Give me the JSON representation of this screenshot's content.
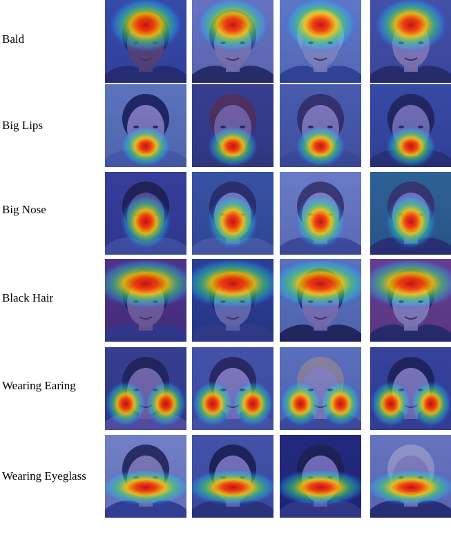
{
  "figure": {
    "rows": [
      {
        "label": "Bald",
        "focus": "crown",
        "tiles": [
          {
            "bg": "#3a4fa8",
            "skin": "#6b4a6e",
            "hair": "#1e1e40",
            "cloth": "#2a2f6a"
          },
          {
            "bg": "#7b86c9",
            "skin": "#9b8fc0",
            "hair": "#3a3a6a",
            "cloth": "#2c2f5e"
          },
          {
            "bg": "#6f8bd1",
            "skin": "#9ea8d6",
            "hair": "#b7bbe0",
            "cloth": "#3b4fa2"
          },
          {
            "bg": "#4a57a8",
            "skin": "#a492c6",
            "hair": "#5a5a8a",
            "cloth": "#2b2e62"
          }
        ]
      },
      {
        "label": "Big Lips",
        "focus": "lips",
        "tiles": [
          {
            "bg": "#6b86c4",
            "skin": "#9c8ec8",
            "hair": "#1d2150",
            "cloth": "#5a70b8"
          },
          {
            "bg": "#3c3f86",
            "skin": "#8e6fa8",
            "hair": "#5a2f4a",
            "cloth": "#3a3f7c"
          },
          {
            "bg": "#5266b0",
            "skin": "#9a8cc4",
            "hair": "#3a2f5e",
            "cloth": "#4a5aa6"
          },
          {
            "bg": "#3a4fa3",
            "skin": "#8a80bd",
            "hair": "#20224e",
            "cloth": "#2e3570"
          }
        ]
      },
      {
        "label": "Big Nose",
        "focus": "nose",
        "tiles": [
          {
            "bg": "#3a3f95",
            "skin": "#6b4f7e",
            "hair": "#1b1b3e",
            "cloth": "#4f5fb0"
          },
          {
            "bg": "#3a5aa0",
            "skin": "#8f8fc6",
            "hair": "#2b2b5a",
            "cloth": "#5a6fb8"
          },
          {
            "bg": "#7e8fd0",
            "skin": "#a29ccc",
            "hair": "#3f3a66",
            "cloth": "#4d5aa8"
          },
          {
            "bg": "#2f6d8e",
            "skin": "#8e8ac4",
            "hair": "#3a3660",
            "cloth": "#2e3470"
          }
        ]
      },
      {
        "label": "Black Hair",
        "focus": "hair",
        "tiles": [
          {
            "bg": "#5a2f7a",
            "skin": "#8c6e9e",
            "hair": "#1a1a3a",
            "cloth": "#3b3f8e"
          },
          {
            "bg": "#2c3f8a",
            "skin": "#7f80b8",
            "hair": "#18183a",
            "cloth": "#3a4388"
          },
          {
            "bg": "#6b84c4",
            "skin": "#9a88be",
            "hair": "#1c1c3e",
            "cloth": "#22264e"
          },
          {
            "bg": "#7a3f86",
            "skin": "#a499c9",
            "hair": "#1e1e44",
            "cloth": "#2a2c60"
          }
        ]
      },
      {
        "label": "Wearing Earing",
        "focus": "ears",
        "tiles": [
          {
            "bg": "#3a3f88",
            "skin": "#8e78b0",
            "hair": "#1e1f48",
            "cloth": "#6a5fae"
          },
          {
            "bg": "#4c5aa8",
            "skin": "#9c90c8",
            "hair": "#2a2450",
            "cloth": "#5868b4"
          },
          {
            "bg": "#6a80c6",
            "skin": "#a69ccc",
            "hair": "#a89a9e",
            "cloth": "#4e5aa8"
          },
          {
            "bg": "#3a4598",
            "skin": "#988cc4",
            "hair": "#1c1e46",
            "cloth": "#404a9a"
          }
        ]
      },
      {
        "label": "Wearing Eyeglass",
        "focus": "eyes",
        "tiles": [
          {
            "bg": "#8a96d0",
            "skin": "#9a8cbe",
            "hair": "#2a2a50",
            "cloth": "#3d4aa0"
          },
          {
            "bg": "#4a5aa8",
            "skin": "#8e86c0",
            "hair": "#1c1c42",
            "cloth": "#303878"
          },
          {
            "bg": "#20236e",
            "skin": "#8e80c0",
            "hair": "#1a1a3c",
            "cloth": "#3a3f8a"
          },
          {
            "bg": "#7a86c6",
            "skin": "#9e94c8",
            "hair": "#b4b4d6",
            "cloth": "#2e3270"
          }
        ]
      }
    ]
  }
}
